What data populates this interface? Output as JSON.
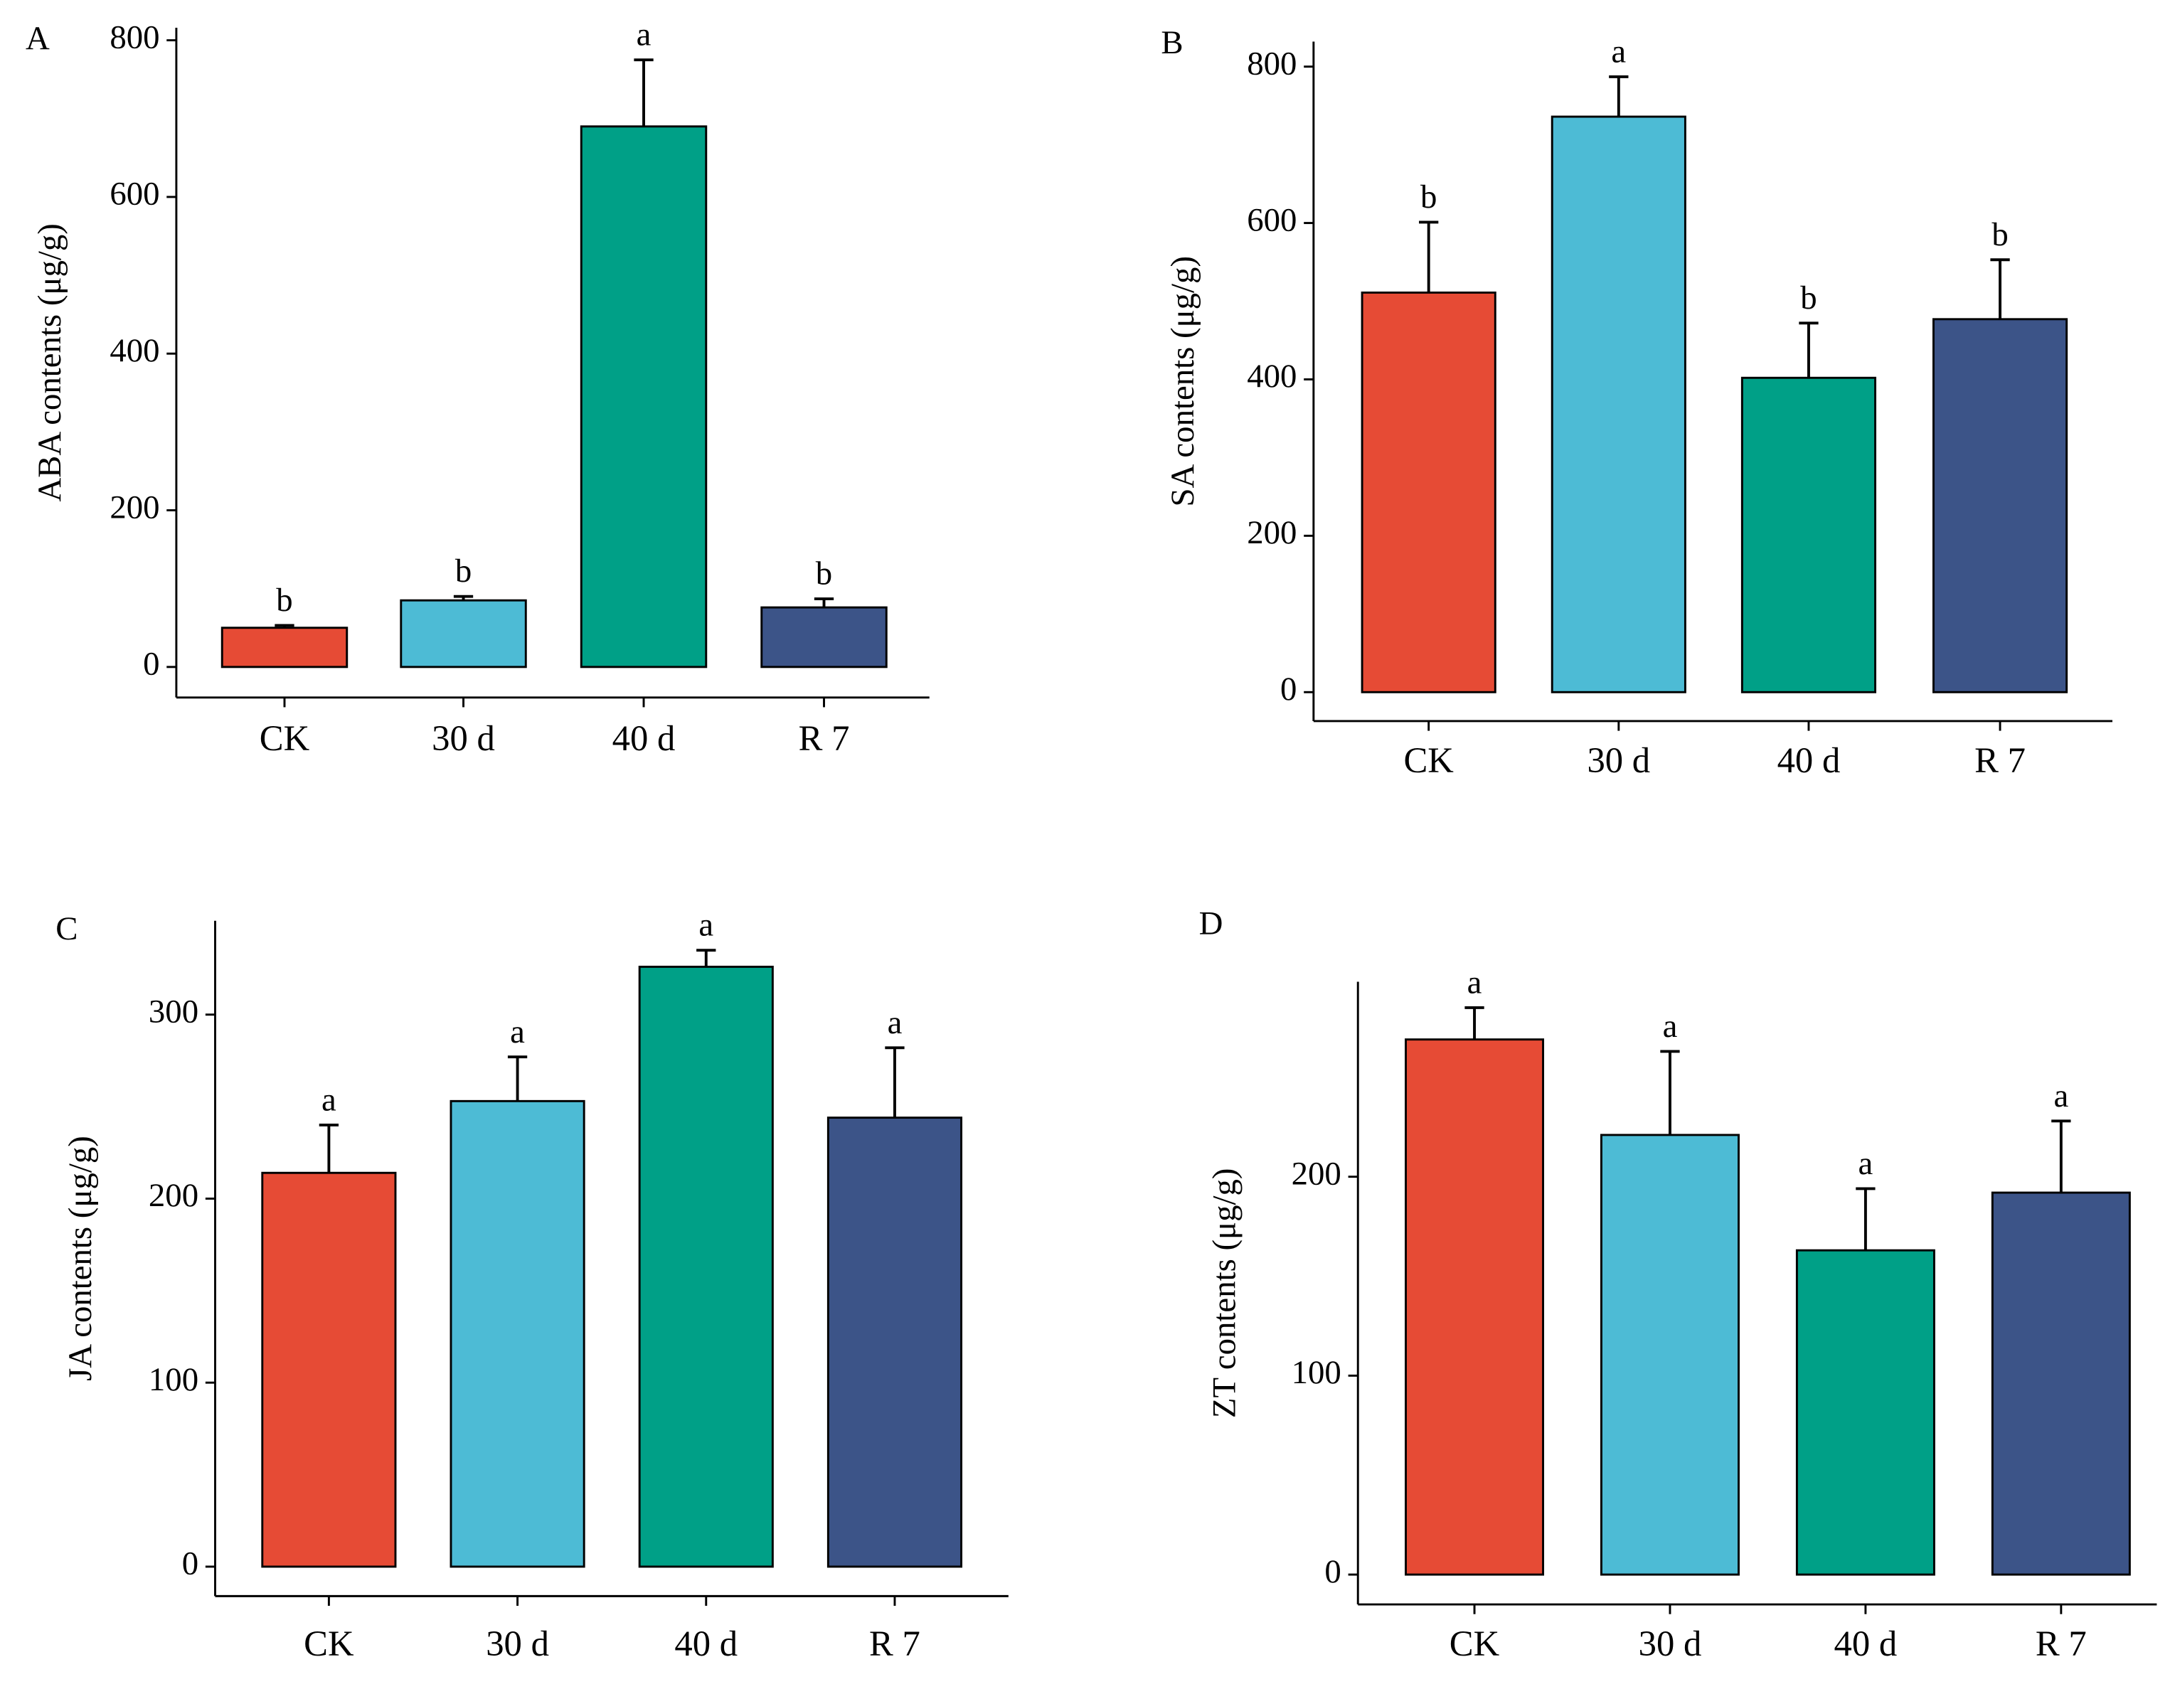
{
  "chart_data": [
    {
      "type": "bar",
      "panel": "A",
      "ylabel": "ABA contents (μg/g)",
      "categories": [
        "CK",
        "30 d",
        "40 d",
        "R 7"
      ],
      "values": [
        50,
        85,
        690,
        76
      ],
      "errors": [
        3,
        5,
        85,
        11
      ],
      "annotations": [
        "b",
        "b",
        "a",
        "b"
      ],
      "colors": [
        "#e64b35",
        "#4dbbd5",
        "#00a087",
        "#3c5488"
      ],
      "ylim": [
        -39,
        816
      ],
      "yticks": [
        0,
        200,
        400,
        600,
        800
      ]
    },
    {
      "type": "bar",
      "panel": "B",
      "ylabel": "SA contents (μg/g)",
      "categories": [
        "CK",
        "30 d",
        "40 d",
        "R 7"
      ],
      "values": [
        511,
        736,
        402,
        477
      ],
      "errors": [
        90,
        51,
        70,
        76
      ],
      "annotations": [
        "b",
        "a",
        "b",
        "b"
      ],
      "colors": [
        "#e64b35",
        "#4dbbd5",
        "#00a087",
        "#3c5488"
      ],
      "ylim": [
        -37,
        832
      ],
      "yticks": [
        0,
        200,
        400,
        600,
        800
      ]
    },
    {
      "type": "bar",
      "panel": "C",
      "ylabel": "JA contents (μg/g)",
      "categories": [
        "CK",
        "30 d",
        "40 d",
        "R 7"
      ],
      "values": [
        214,
        253,
        326,
        244
      ],
      "errors": [
        26,
        24,
        9,
        38
      ],
      "annotations": [
        "a",
        "a",
        "a",
        "a"
      ],
      "colors": [
        "#e64b35",
        "#4dbbd5",
        "#00a087",
        "#3c5488"
      ],
      "ylim": [
        -16,
        351
      ],
      "yticks": [
        0,
        100,
        200,
        300
      ]
    },
    {
      "type": "bar",
      "panel": "D",
      "ylabel": "ZT contents (μg/g)",
      "categories": [
        "CK",
        "30 d",
        "40 d",
        "R 7"
      ],
      "values": [
        269,
        221,
        163,
        192
      ],
      "errors": [
        16,
        42,
        31,
        36
      ],
      "annotations": [
        "a",
        "a",
        "a",
        "a"
      ],
      "colors": [
        "#e64b35",
        "#4dbbd5",
        "#00a087",
        "#3c5488"
      ],
      "ylim": [
        -15,
        298
      ],
      "yticks": [
        0,
        100,
        200
      ]
    }
  ]
}
